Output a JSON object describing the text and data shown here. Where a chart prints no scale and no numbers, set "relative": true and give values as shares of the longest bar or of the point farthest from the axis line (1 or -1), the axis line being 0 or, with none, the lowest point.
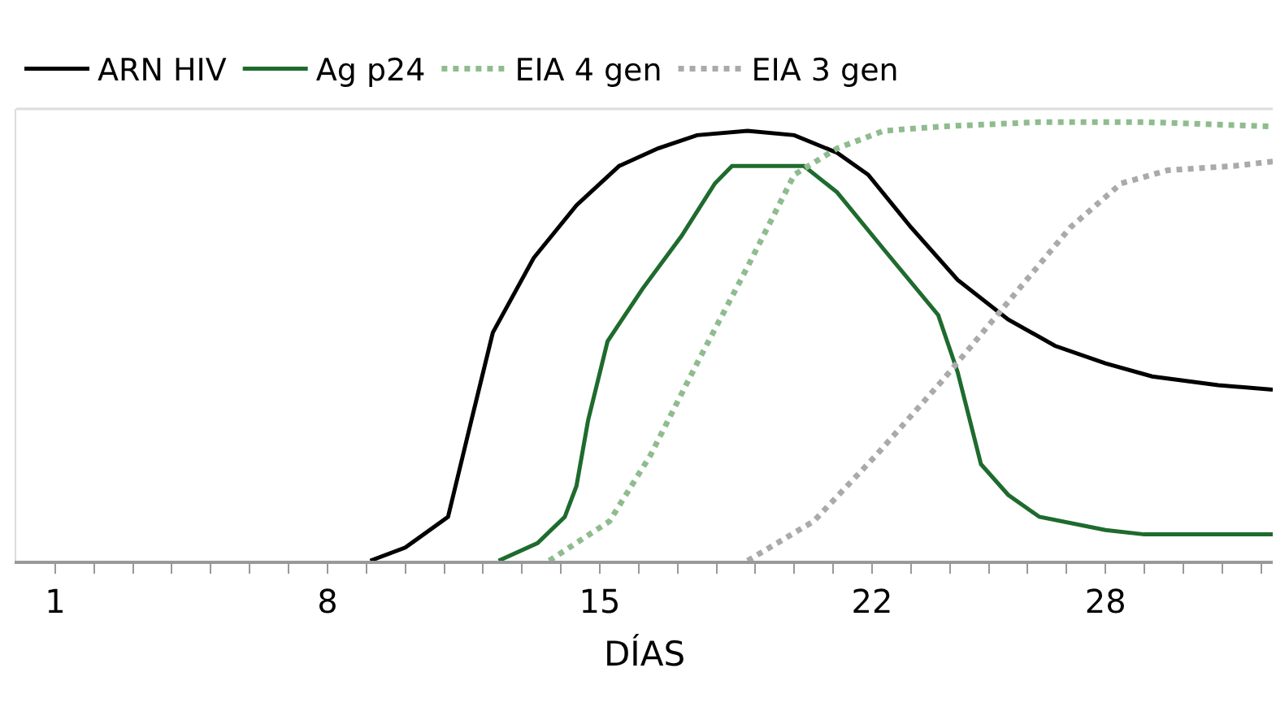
{
  "chart_data": {
    "type": "line",
    "relative": true,
    "xlabel": "DÍAS",
    "xlim": [
      0,
      32.3
    ],
    "xticks": [
      1,
      {
        "value": 2,
        "label": null
      },
      {
        "value": 3,
        "label": null
      },
      {
        "value": 4,
        "label": null
      },
      {
        "value": 5,
        "label": null
      },
      {
        "value": 6,
        "label": null
      },
      {
        "value": 7,
        "label": null
      },
      8,
      {
        "value": 9,
        "label": null
      },
      {
        "value": 10,
        "label": null
      },
      {
        "value": 11,
        "label": null
      },
      {
        "value": 12,
        "label": null
      },
      {
        "value": 13,
        "label": null
      },
      {
        "value": 14,
        "label": null
      },
      15,
      {
        "value": 16,
        "label": null
      },
      {
        "value": 17,
        "label": null
      },
      {
        "value": 18,
        "label": null
      },
      {
        "value": 19,
        "label": null
      },
      {
        "value": 20,
        "label": null
      },
      {
        "value": 21,
        "label": null
      },
      22,
      {
        "value": 23,
        "label": null
      },
      {
        "value": 24,
        "label": null
      },
      {
        "value": 25,
        "label": null
      },
      {
        "value": 26,
        "label": null
      },
      {
        "value": 27,
        "label": null
      },
      28,
      {
        "value": 29,
        "label": null
      },
      {
        "value": 30,
        "label": null
      },
      {
        "value": 31,
        "label": null
      },
      {
        "value": 32,
        "label": null
      }
    ],
    "legend": "top",
    "series": [
      {
        "name": "ARN HIV",
        "color": "#000000",
        "line_style": "solid",
        "x": [
          9.1,
          10.0,
          11.1,
          11.7,
          12.25,
          13.3,
          14.4,
          15.5,
          16.5,
          17.5,
          18.8,
          20.0,
          21.1,
          21.9,
          23.0,
          24.2,
          25.5,
          26.7,
          28.0,
          29.2,
          30.9,
          32.3
        ],
        "values": [
          0,
          0.03,
          0.1,
          0.32,
          0.52,
          0.69,
          0.81,
          0.9,
          0.94,
          0.97,
          0.98,
          0.97,
          0.93,
          0.88,
          0.76,
          0.64,
          0.55,
          0.49,
          0.45,
          0.42,
          0.4,
          0.39
        ]
      },
      {
        "name": "Ag p24",
        "color": "#1e6b2e",
        "line_style": "solid",
        "x": [
          12.4,
          13.4,
          14.1,
          14.4,
          14.7,
          15.2,
          16.1,
          17.1,
          17.96,
          18.4,
          19.2,
          20.25,
          21.1,
          22.3,
          23.7,
          24.2,
          24.8,
          25.5,
          26.3,
          28.0,
          29.0,
          32.3
        ],
        "values": [
          0,
          0.04,
          0.1,
          0.17,
          0.32,
          0.5,
          0.62,
          0.74,
          0.86,
          0.9,
          0.9,
          0.9,
          0.84,
          0.71,
          0.56,
          0.43,
          0.22,
          0.15,
          0.1,
          0.07,
          0.06,
          0.06
        ]
      },
      {
        "name": "EIA 4 gen",
        "color": "#8fbc8f",
        "line_style": "dotted",
        "x": [
          13.7,
          15.25,
          16.3,
          17.5,
          18.8,
          20.0,
          21.1,
          22.3,
          23.8,
          26.3,
          29.0,
          32.3
        ],
        "values": [
          0,
          0.09,
          0.24,
          0.45,
          0.67,
          0.88,
          0.94,
          0.98,
          0.99,
          1.0,
          1.0,
          0.99
        ]
      },
      {
        "name": "EIA 3 gen",
        "color": "#aaaaaa",
        "line_style": "dotted",
        "x": [
          18.8,
          20.5,
          22.1,
          23.8,
          25.5,
          27.1,
          28.4,
          29.6,
          31.3,
          32.3
        ],
        "values": [
          0,
          0.09,
          0.24,
          0.41,
          0.59,
          0.76,
          0.86,
          0.89,
          0.9,
          0.91
        ]
      }
    ]
  }
}
